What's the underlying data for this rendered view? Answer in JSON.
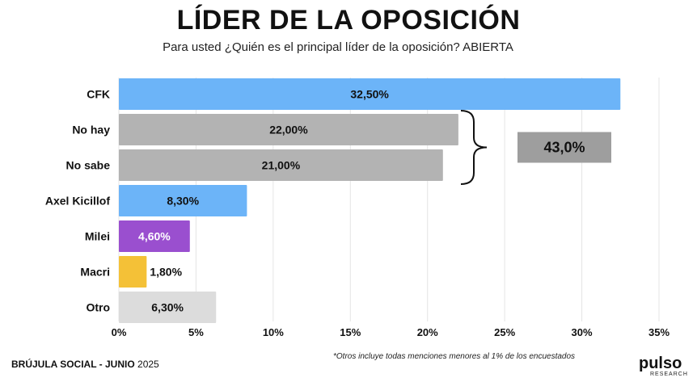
{
  "header": {
    "title": "LÍDER DE LA OPOSICIÓN",
    "subtitle": "Para usted ¿Quién es el principal líder de la oposición? ABIERTA"
  },
  "chart_data": {
    "type": "bar",
    "orientation": "horizontal",
    "categories": [
      "CFK",
      "No hay",
      "No sabe",
      "Axel Kicillof",
      "Milei",
      "Macri",
      "Otro"
    ],
    "values": [
      32.5,
      22.0,
      21.0,
      8.3,
      4.6,
      1.8,
      6.3
    ],
    "value_labels": [
      "32,50%",
      "22,00%",
      "21,00%",
      "8,30%",
      "4,60%",
      "1,80%",
      "6,30%"
    ],
    "colors": [
      "#6cb4f8",
      "#b3b3b3",
      "#b3b3b3",
      "#6cb4f8",
      "#9a4fcf",
      "#f4c137",
      "#dcdcdc"
    ],
    "label_colors": [
      "#111111",
      "#111111",
      "#111111",
      "#111111",
      "#ffffff",
      "#111111",
      "#111111"
    ],
    "xlim": [
      0,
      35
    ],
    "xticks": [
      0,
      5,
      10,
      15,
      20,
      25,
      30,
      35
    ],
    "xtick_labels": [
      "0%",
      "5%",
      "10%",
      "15%",
      "20%",
      "25%",
      "30%",
      "35%"
    ],
    "grid": true,
    "annotation": {
      "text": "43,0%",
      "groups": [
        "No hay",
        "No sabe"
      ],
      "color": "#9e9e9e"
    }
  },
  "footer": {
    "source_bold": "BRÚJULA SOCIAL - JUNIO",
    "source_year": "2025",
    "footnote": "*Otros incluye todas menciones menores al 1% de los encuestados",
    "logo_text": "pulso",
    "logo_sub": "RESEARCH"
  }
}
